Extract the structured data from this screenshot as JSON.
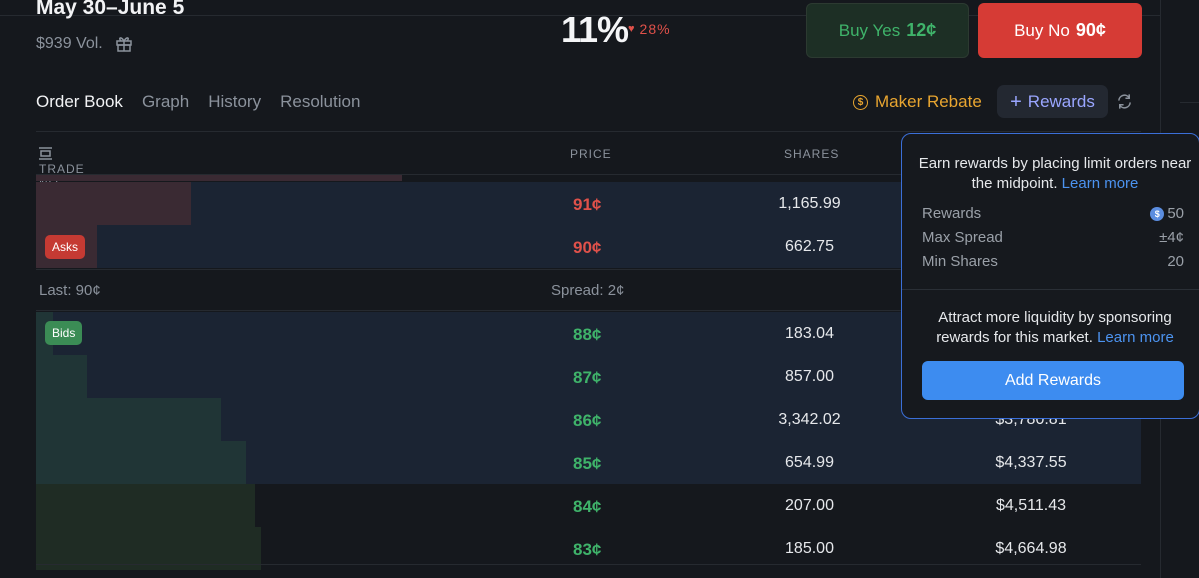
{
  "market": {
    "title": "May 30–June 5",
    "volume": "$939 Vol.",
    "probability": "11%",
    "change": "28%"
  },
  "buttons": {
    "buy_yes_label": "Buy Yes",
    "buy_yes_price": "12¢",
    "buy_no_label": "Buy No",
    "buy_no_price": "90¢"
  },
  "tabs": [
    "Order Book",
    "Graph",
    "History",
    "Resolution"
  ],
  "toolbar": {
    "maker_rebate": "Maker Rebate",
    "rewards": "Rewards"
  },
  "table": {
    "headers": {
      "trade": "TRADE NO",
      "price": "PRICE",
      "shares": "SHARES"
    },
    "asks_badge": "Asks",
    "bids_badge": "Bids",
    "asks": [
      {
        "price": "91¢",
        "shares": "1,165.99",
        "total": "",
        "depth": 0.14
      },
      {
        "price": "90¢",
        "shares": "662.75",
        "total": "",
        "depth": 0.055
      }
    ],
    "last": "Last: 90¢",
    "spread": "Spread: 2¢",
    "bids": [
      {
        "price": "88¢",
        "shares": "183.04",
        "total": "",
        "depth": 0.015
      },
      {
        "price": "87¢",
        "shares": "857.00",
        "total": "",
        "depth": 0.046
      },
      {
        "price": "86¢",
        "shares": "3,342.02",
        "total": "$3,780.81",
        "depth": 0.167
      },
      {
        "price": "85¢",
        "shares": "654.99",
        "total": "$4,337.55",
        "depth": 0.19
      },
      {
        "price": "84¢",
        "shares": "207.00",
        "total": "$4,511.43",
        "depth": 0.198
      },
      {
        "price": "83¢",
        "shares": "185.00",
        "total": "$4,664.98",
        "depth": 0.204
      }
    ]
  },
  "popup": {
    "intro": "Earn rewards by placing limit orders near the midpoint.",
    "learn_more": "Learn more",
    "rows": [
      {
        "label": "Rewards",
        "value": "50"
      },
      {
        "label": "Max Spread",
        "value": "±4¢"
      },
      {
        "label": "Min Shares",
        "value": "20"
      }
    ],
    "sponsor": "Attract more liquidity by sponsoring rewards for this market.",
    "add_button": "Add Rewards"
  },
  "colors": {
    "ask_row": "#1b2433",
    "ask_depth": "#3a2a33",
    "bid_row": "#1b2433",
    "bid_depth": "#203536",
    "bid_row_plain": "#15181d",
    "bid_depth_plain": "#1f2c24"
  }
}
